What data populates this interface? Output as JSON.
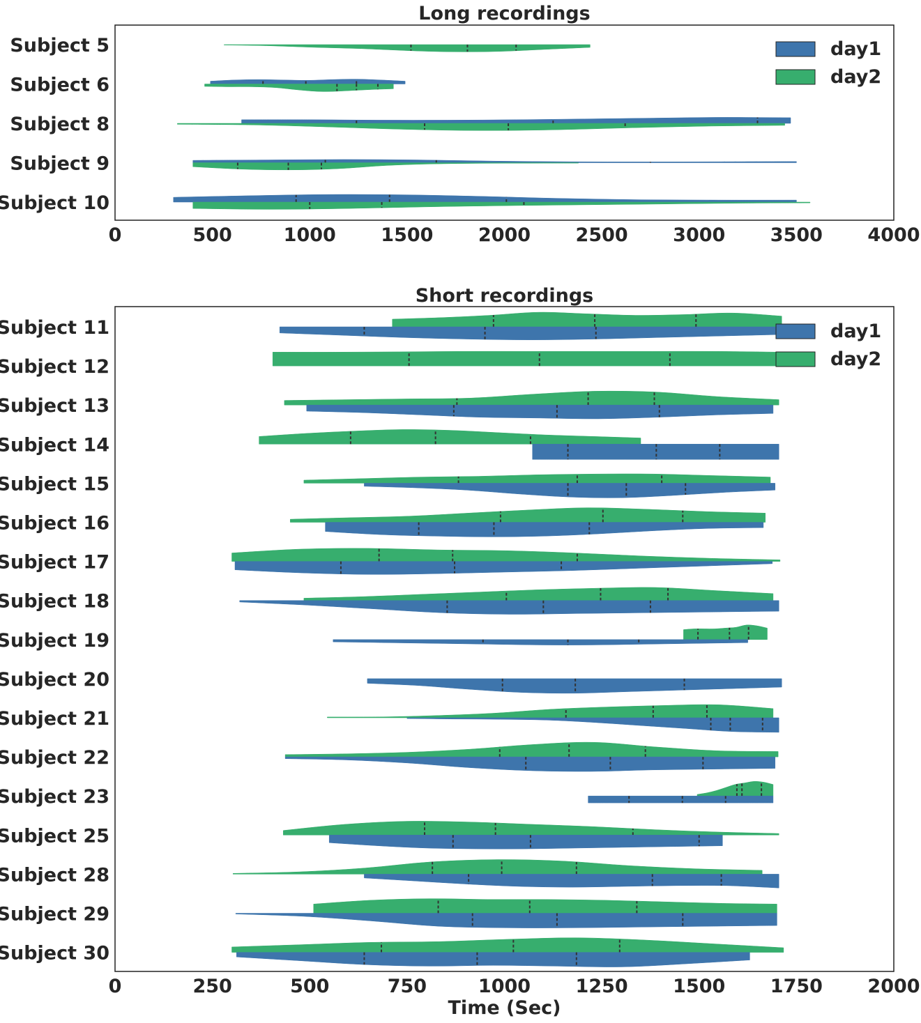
{
  "colors": {
    "day1": "#3e75ac",
    "day2": "#37ae6e",
    "median_line": "#333333"
  },
  "legend": {
    "day1_label": "day1",
    "day2_label": "day2"
  },
  "chart_data": [
    {
      "type": "violin",
      "title": "Long recordings",
      "xlabel": "",
      "xlim": [
        0,
        4000
      ],
      "xticks": [
        0,
        500,
        1000,
        1500,
        2000,
        2500,
        3000,
        3500,
        4000
      ],
      "legend_position": "top-right",
      "categories": [
        "Subject 5",
        "Subject 6",
        "Subject 8",
        "Subject 9",
        "Subject 10"
      ],
      "series": [
        {
          "name": "day1",
          "side": "top",
          "violins": [
            null,
            {
              "min": 490,
              "max": 1490,
              "quartiles": [
                760,
                980,
                1240
              ],
              "profile": [
                0.35,
                0.5,
                0.55,
                0.5,
                0.45,
                0.55,
                0.6,
                0.5,
                0.35
              ]
            },
            {
              "min": 650,
              "max": 3470,
              "quartiles": [
                1240,
                2250,
                3300
              ],
              "profile": [
                0.45,
                0.45,
                0.4,
                0.4,
                0.45,
                0.55,
                0.65,
                0.75,
                0.7
              ]
            },
            {
              "min": 400,
              "max": 3500,
              "quartiles": [
                1080,
                1650,
                2750
              ],
              "profile": [
                0.3,
                0.35,
                0.4,
                0.35,
                0.2,
                0.12,
                0.1,
                0.12,
                0.15
              ]
            },
            {
              "min": 300,
              "max": 3500,
              "quartiles": [
                930,
                1410,
                2010
              ],
              "profile": [
                0.6,
                0.8,
                0.95,
                0.9,
                0.7,
                0.45,
                0.3,
                0.25,
                0.25
              ]
            }
          ]
        },
        {
          "name": "day2",
          "side": "bottom",
          "violins": [
            {
              "min": 560,
              "max": 2440,
              "quartiles": [
                1520,
                1810,
                2060
              ],
              "profile": [
                0.05,
                0.15,
                0.35,
                0.5,
                0.75,
                0.9,
                0.85,
                0.6,
                0.35
              ]
            },
            {
              "min": 460,
              "max": 1430,
              "quartiles": [
                1140,
                1240,
                1350
              ],
              "profile": [
                0.3,
                0.35,
                0.35,
                0.45,
                0.75,
                0.95,
                0.85,
                0.7,
                0.6
              ]
            },
            {
              "min": 320,
              "max": 3440,
              "quartiles": [
                1590,
                2020,
                2620
              ],
              "profile": [
                0.12,
                0.2,
                0.45,
                0.75,
                0.9,
                0.8,
                0.55,
                0.35,
                0.25
              ]
            },
            {
              "min": 400,
              "max": 2380,
              "quartiles": [
                630,
                890,
                1060
              ],
              "profile": [
                0.5,
                0.8,
                0.9,
                0.75,
                0.35,
                0.15,
                0.08,
                0.06,
                0.05
              ]
            },
            {
              "min": 400,
              "max": 3570,
              "quartiles": [
                1000,
                1370,
                2100
              ],
              "profile": [
                0.8,
                0.9,
                0.8,
                0.6,
                0.45,
                0.35,
                0.25,
                0.15,
                0.1
              ]
            }
          ]
        }
      ]
    },
    {
      "type": "violin",
      "title": "Short recordings",
      "xlabel": "Time (Sec)",
      "xlim": [
        0,
        2000
      ],
      "xticks": [
        0,
        250,
        500,
        750,
        1000,
        1250,
        1500,
        1750,
        2000
      ],
      "legend_position": "top-right",
      "categories": [
        "Subject 11",
        "Subject 12",
        "Subject 13",
        "Subject 14",
        "Subject 15",
        "Subject 16",
        "Subject 17",
        "Subject 18",
        "Subject 19",
        "Subject 20",
        "Subject 21",
        "Subject 22",
        "Subject 23",
        "Subject 25",
        "Subject 28",
        "Subject 29",
        "Subject 30"
      ],
      "series": [
        {
          "name": "day2",
          "side": "top",
          "violins": [
            {
              "min": 712,
              "max": 1712,
              "quartiles": [
                972,
                1232,
                1492
              ],
              "profile": [
                0.5,
                0.6,
                0.75,
                0.95,
                0.85,
                0.75,
                0.8,
                0.9,
                0.7
              ]
            },
            {
              "min": 405,
              "max": 1705,
              "quartiles": [
                755,
                1090,
                1425
              ],
              "profile": [
                0.9,
                0.9,
                0.92,
                0.95,
                0.95,
                0.95,
                0.95,
                0.95,
                0.9
              ]
            },
            {
              "min": 435,
              "max": 1705,
              "quartiles": [
                878,
                1215,
                1385
              ],
              "profile": [
                0.3,
                0.35,
                0.4,
                0.45,
                0.7,
                0.9,
                0.85,
                0.55,
                0.35
              ]
            },
            {
              "min": 370,
              "max": 1350,
              "quartiles": [
                605,
                823,
                1067
              ],
              "profile": [
                0.5,
                0.7,
                0.85,
                0.95,
                0.9,
                0.75,
                0.6,
                0.5,
                0.4
              ]
            },
            {
              "min": 485,
              "max": 1683,
              "quartiles": [
                882,
                1187,
                1404
              ],
              "profile": [
                0.2,
                0.3,
                0.4,
                0.45,
                0.55,
                0.6,
                0.6,
                0.5,
                0.4
              ]
            },
            {
              "min": 450,
              "max": 1670,
              "quartiles": [
                990,
                1253,
                1458
              ],
              "profile": [
                0.2,
                0.3,
                0.4,
                0.6,
                0.8,
                0.95,
                0.85,
                0.7,
                0.6
              ]
            },
            {
              "min": 300,
              "max": 1708,
              "quartiles": [
                678,
                867,
                1187
              ],
              "profile": [
                0.55,
                0.8,
                0.85,
                0.75,
                0.7,
                0.55,
                0.35,
                0.2,
                0.1
              ]
            },
            {
              "min": 485,
              "max": 1690,
              "quartiles": [
                1005,
                1247,
                1420
              ],
              "profile": [
                0.15,
                0.25,
                0.4,
                0.55,
                0.7,
                0.8,
                0.85,
                0.65,
                0.45
              ]
            },
            {
              "min": 1460,
              "max": 1675,
              "quartiles": [
                1497,
                1578,
                1627
              ],
              "profile": [
                0.65,
                0.7,
                0.7,
                0.7,
                0.75,
                0.8,
                0.95,
                0.9,
                0.75
              ]
            },
            null,
            {
              "min": 545,
              "max": 1690,
              "quartiles": [
                1158,
                1382,
                1520
              ],
              "profile": [
                0.05,
                0.06,
                0.15,
                0.3,
                0.55,
                0.7,
                0.8,
                0.85,
                0.6
              ]
            },
            {
              "min": 437,
              "max": 1703,
              "quartiles": [
                988,
                1166,
                1362
              ],
              "profile": [
                0.15,
                0.2,
                0.3,
                0.5,
                0.8,
                0.95,
                0.65,
                0.4,
                0.35
              ]
            },
            {
              "min": 1495,
              "max": 1690,
              "quartiles": [
                1597,
                1610,
                1660
              ],
              "profile": [
                0.1,
                0.2,
                0.35,
                0.55,
                0.75,
                0.85,
                0.95,
                0.9,
                0.75
              ]
            },
            {
              "min": 432,
              "max": 1705,
              "quartiles": [
                795,
                977,
                1330
              ],
              "profile": [
                0.3,
                0.7,
                0.9,
                0.85,
                0.7,
                0.55,
                0.35,
                0.2,
                0.1
              ]
            },
            {
              "min": 303,
              "max": 1662,
              "quartiles": [
                815,
                993,
                1185
              ],
              "profile": [
                0.05,
                0.15,
                0.4,
                0.8,
                0.95,
                0.85,
                0.55,
                0.35,
                0.25
              ]
            },
            {
              "min": 510,
              "max": 1700,
              "quartiles": [
                830,
                1065,
                1340
              ],
              "profile": [
                0.6,
                0.85,
                0.95,
                0.9,
                0.9,
                0.85,
                0.75,
                0.65,
                0.6
              ]
            },
            {
              "min": 300,
              "max": 1717,
              "quartiles": [
                684,
                1023,
                1296
              ],
              "profile": [
                0.35,
                0.5,
                0.65,
                0.7,
                0.85,
                0.95,
                0.8,
                0.55,
                0.3
              ]
            }
          ]
        },
        {
          "name": "day1",
          "side": "bottom",
          "violins": [
            {
              "min": 423,
              "max": 1712,
              "quartiles": [
                640,
                950,
                1235
              ],
              "profile": [
                0.4,
                0.55,
                0.7,
                0.8,
                0.85,
                0.8,
                0.7,
                0.6,
                0.5
              ]
            },
            null,
            {
              "min": 492,
              "max": 1690,
              "quartiles": [
                870,
                1135,
                1398
              ],
              "profile": [
                0.4,
                0.5,
                0.65,
                0.8,
                0.85,
                0.9,
                0.8,
                0.65,
                0.55
              ]
            },
            {
              "min": 1072,
              "max": 1705,
              "quartiles": [
                1163,
                1390,
                1553
              ],
              "profile": [
                1.0,
                1.0,
                1.0,
                1.0,
                1.0,
                1.0,
                1.0,
                1.0,
                1.0
              ]
            },
            {
              "min": 640,
              "max": 1695,
              "quartiles": [
                1163,
                1313,
                1465
              ],
              "profile": [
                0.2,
                0.3,
                0.45,
                0.7,
                0.9,
                0.95,
                0.8,
                0.6,
                0.45
              ]
            },
            {
              "min": 540,
              "max": 1665,
              "quartiles": [
                780,
                973,
                1218
              ],
              "profile": [
                0.6,
                0.8,
                0.9,
                0.95,
                0.9,
                0.75,
                0.55,
                0.4,
                0.35
              ]
            },
            {
              "min": 308,
              "max": 1688,
              "quartiles": [
                580,
                872,
                1146
              ],
              "profile": [
                0.55,
                0.75,
                0.85,
                0.8,
                0.7,
                0.6,
                0.45,
                0.3,
                0.15
              ]
            },
            {
              "min": 320,
              "max": 1705,
              "quartiles": [
                853,
                1100,
                1375
              ],
              "profile": [
                0.1,
                0.3,
                0.55,
                0.8,
                0.9,
                0.85,
                0.8,
                0.75,
                0.7
              ]
            },
            {
              "min": 560,
              "max": 1625,
              "quartiles": [
                945,
                1163,
                1345
              ],
              "profile": [
                0.15,
                0.2,
                0.25,
                0.3,
                0.35,
                0.35,
                0.3,
                0.25,
                0.2
              ]
            },
            {
              "min": 648,
              "max": 1712,
              "quartiles": [
                995,
                1182,
                1462
              ],
              "profile": [
                0.3,
                0.45,
                0.7,
                0.9,
                0.95,
                0.85,
                0.75,
                0.65,
                0.55
              ]
            },
            {
              "min": 750,
              "max": 1705,
              "quartiles": [
                1530,
                1580,
                1663
              ],
              "profile": [
                0.05,
                0.08,
                0.1,
                0.15,
                0.3,
                0.5,
                0.7,
                0.9,
                0.95
              ]
            },
            {
              "min": 437,
              "max": 1695,
              "quartiles": [
                1055,
                1272,
                1510
              ],
              "profile": [
                0.12,
                0.2,
                0.4,
                0.7,
                0.9,
                0.95,
                0.85,
                0.8,
                0.75
              ]
            },
            {
              "min": 1215,
              "max": 1690,
              "quartiles": [
                1320,
                1457,
                1568
              ],
              "profile": [
                0.45,
                0.45,
                0.45,
                0.45,
                0.45,
                0.45,
                0.45,
                0.45,
                0.45
              ]
            },
            {
              "min": 550,
              "max": 1560,
              "quartiles": [
                868,
                1067,
                1500
              ],
              "profile": [
                0.5,
                0.7,
                0.85,
                0.9,
                0.9,
                0.85,
                0.8,
                0.75,
                0.7
              ]
            },
            {
              "min": 640,
              "max": 1705,
              "quartiles": [
                908,
                1380,
                1557
              ],
              "profile": [
                0.25,
                0.45,
                0.65,
                0.8,
                0.85,
                0.8,
                0.75,
                0.75,
                0.9
              ]
            },
            {
              "min": 310,
              "max": 1700,
              "quartiles": [
                918,
                1135,
                1458
              ],
              "profile": [
                0.05,
                0.2,
                0.5,
                0.85,
                0.95,
                0.95,
                0.9,
                0.85,
                0.8
              ]
            },
            {
              "min": 312,
              "max": 1630,
              "quartiles": [
                640,
                930,
                1185
              ],
              "profile": [
                0.3,
                0.55,
                0.8,
                0.9,
                0.85,
                0.9,
                0.95,
                0.75,
                0.5
              ]
            }
          ]
        }
      ]
    }
  ]
}
